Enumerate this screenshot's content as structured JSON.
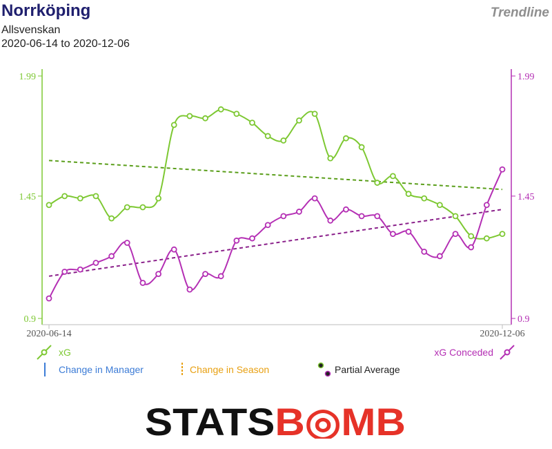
{
  "header": {
    "title": "Norrköping",
    "subtitle": "Allsvenskan",
    "date_range": "2020-06-14 to 2020-12-06",
    "badge": "Trendline"
  },
  "colors": {
    "xg": "#7dc832",
    "xg_trend": "#5a9e1a",
    "xg_conceded": "#b42fb4",
    "xg_conceded_trend": "#8a1f8a",
    "manager": "#3b7bd6",
    "season": "#e8a012",
    "partial": "#222222",
    "logo_black": "#111111",
    "logo_red": "#e63228"
  },
  "legend": {
    "xg": "xG",
    "xg_conceded": "xG Conceded",
    "change_manager": "Change in Manager",
    "change_season": "Change in Season",
    "partial_average": "Partial Average"
  },
  "logo": {
    "part1": "STATS",
    "part2": "B",
    "part3": "MB"
  },
  "chart_data": {
    "type": "line",
    "x_tick_labels": [
      "2020-06-14",
      "2020-12-06"
    ],
    "left_axis": {
      "ticks": [
        "1.99",
        "1.45",
        "0.9"
      ],
      "ylim": [
        0.9,
        1.99
      ]
    },
    "right_axis": {
      "ticks": [
        "1.99",
        "1.45",
        "0.9"
      ],
      "ylim": [
        0.9,
        1.99
      ]
    },
    "grid": false,
    "legend_placement": "bottom",
    "series": [
      {
        "name": "xG",
        "axis": "left",
        "values": [
          1.41,
          1.45,
          1.44,
          1.45,
          1.35,
          1.4,
          1.4,
          1.44,
          1.77,
          1.81,
          1.8,
          1.84,
          1.82,
          1.78,
          1.72,
          1.7,
          1.79,
          1.82,
          1.62,
          1.71,
          1.67,
          1.51,
          1.54,
          1.46,
          1.44,
          1.41,
          1.36,
          1.27,
          1.26,
          1.28
        ]
      },
      {
        "name": "xG Conceded",
        "axis": "right",
        "values": [
          0.99,
          1.11,
          1.12,
          1.15,
          1.18,
          1.24,
          1.06,
          1.1,
          1.21,
          1.03,
          1.1,
          1.09,
          1.25,
          1.26,
          1.32,
          1.36,
          1.38,
          1.44,
          1.34,
          1.39,
          1.36,
          1.36,
          1.28,
          1.29,
          1.2,
          1.18,
          1.28,
          1.22,
          1.41,
          1.57
        ]
      }
    ],
    "trendlines": [
      {
        "series": "xG",
        "start": 1.61,
        "end": 1.48
      },
      {
        "series": "xG Conceded",
        "start": 1.09,
        "end": 1.39
      }
    ]
  }
}
